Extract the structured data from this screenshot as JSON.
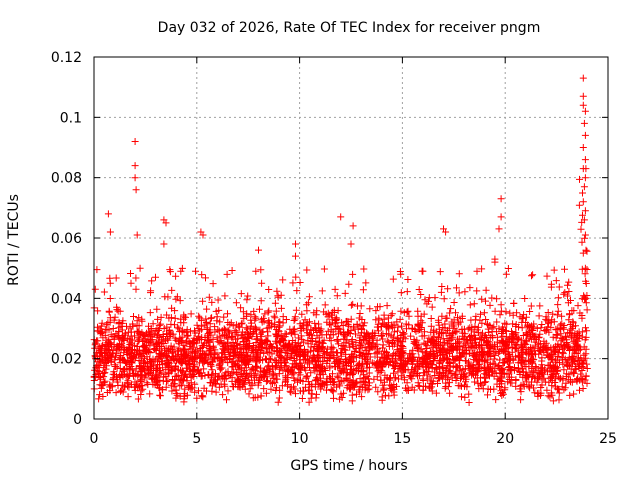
{
  "chart_data": {
    "type": "scatter",
    "title": "Day 032 of 2026, Rate Of TEC Index for receiver pngm",
    "xlabel": "GPS time / hours",
    "ylabel": "ROTI / TECUs",
    "xlim": [
      0,
      25
    ],
    "ylim": [
      0,
      0.12
    ],
    "xticks": [
      0,
      5,
      10,
      15,
      20,
      25
    ],
    "xtick_labels": [
      "0",
      "5",
      "10",
      "15",
      "20",
      "25"
    ],
    "yticks": [
      0,
      0.02,
      0.04,
      0.06,
      0.08,
      0.1,
      0.12
    ],
    "ytick_labels": [
      "0",
      "0.02",
      "0.04",
      "0.06",
      "0.08",
      "0.1",
      "0.12"
    ],
    "grid": true,
    "marker": "+",
    "color": "#ff0000",
    "data_x_range_hours": [
      0,
      24
    ],
    "typical_roti_range": [
      0.005,
      0.03
    ],
    "series": [
      {
        "name": "ROTI",
        "notable_points": [
          [
            0.7,
            0.068
          ],
          [
            0.8,
            0.062
          ],
          [
            1.8,
            0.045
          ],
          [
            2.0,
            0.092
          ],
          [
            2.0,
            0.084
          ],
          [
            2.0,
            0.08
          ],
          [
            2.05,
            0.076
          ],
          [
            2.1,
            0.061
          ],
          [
            3.4,
            0.066
          ],
          [
            3.5,
            0.065
          ],
          [
            3.4,
            0.058
          ],
          [
            5.2,
            0.062
          ],
          [
            5.3,
            0.061
          ],
          [
            8.0,
            0.056
          ],
          [
            9.8,
            0.058
          ],
          [
            9.8,
            0.054
          ],
          [
            12.0,
            0.067
          ],
          [
            12.6,
            0.064
          ],
          [
            12.5,
            0.058
          ],
          [
            17.0,
            0.063
          ],
          [
            17.1,
            0.062
          ],
          [
            19.5,
            0.053
          ],
          [
            19.5,
            0.052
          ],
          [
            19.8,
            0.073
          ],
          [
            19.8,
            0.067
          ],
          [
            19.7,
            0.063
          ],
          [
            23.8,
            0.113
          ],
          [
            23.8,
            0.107
          ],
          [
            23.8,
            0.104
          ],
          [
            23.9,
            0.102
          ],
          [
            23.85,
            0.098
          ],
          [
            23.9,
            0.094
          ],
          [
            23.8,
            0.09
          ],
          [
            23.9,
            0.086
          ],
          [
            23.8,
            0.083
          ],
          [
            23.9,
            0.08
          ],
          [
            23.85,
            0.077
          ],
          [
            23.8,
            0.072
          ],
          [
            23.9,
            0.069
          ],
          [
            23.85,
            0.066
          ],
          [
            23.9,
            0.061
          ],
          [
            23.8,
            0.055
          ],
          [
            23.9,
            0.05
          ]
        ]
      }
    ]
  }
}
